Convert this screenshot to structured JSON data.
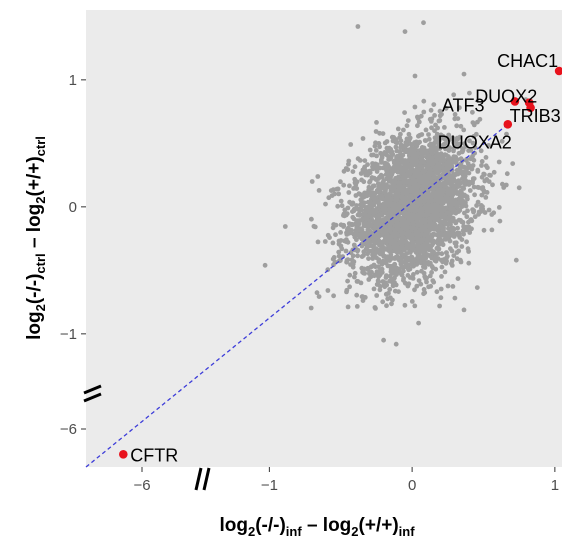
{
  "chart_data": {
    "type": "scatter",
    "title": "",
    "xlabel": {
      "prefix": "log",
      "base": "2",
      "a": "(-/-)",
      "a_sub": "inf",
      "minus": " – ",
      "b": "(+/+)",
      "b_sub": "inf"
    },
    "ylabel": {
      "prefix": "log",
      "base": "2",
      "a": "(-/-)",
      "a_sub": "ctrl",
      "minus": " – ",
      "b": "(+/+)",
      "b_sub": "ctrl"
    },
    "x_axis": {
      "broken": true,
      "segments": [
        [
          -6.3,
          -5.7
        ],
        [
          -1.5,
          1.05
        ]
      ],
      "ticks": [
        -6,
        -1,
        0,
        1
      ],
      "tick_labels": [
        "−6",
        "−1",
        "0",
        "1"
      ]
    },
    "y_axis": {
      "broken": true,
      "segments": [
        [
          -6.3,
          -5.7
        ],
        [
          -1.45,
          1.55
        ]
      ],
      "ticks": [
        -6,
        -1,
        0,
        1
      ],
      "tick_labels": [
        "−6",
        "−1",
        "0",
        "1"
      ]
    },
    "background_points": {
      "color": "#9e9e9e",
      "description_count": 7000,
      "center": [
        0.0,
        0.0
      ],
      "sd_x": 0.22,
      "sd_y": 0.28,
      "correlation": 0.25
    },
    "highlighted": [
      {
        "gene": "CFTR",
        "x": -6.1,
        "y": -6.2,
        "label_side": "right"
      },
      {
        "gene": "CHAC1",
        "x": 1.03,
        "y": 1.07,
        "label_side": "left"
      },
      {
        "gene": "DUOX2",
        "x": 0.82,
        "y": 0.82,
        "label_side": "left"
      },
      {
        "gene": "TRIB3",
        "x": 0.83,
        "y": 0.78,
        "label_side": "left"
      },
      {
        "gene": "ATF3",
        "x": 0.72,
        "y": 0.83,
        "label_side": "left"
      },
      {
        "gene": "DUOXA2",
        "x": 0.67,
        "y": 0.65,
        "label_side": "left"
      }
    ],
    "highlight_color": "#e8121c",
    "reference_line": {
      "style": "dashed",
      "color": "#3d3dd9",
      "from": [
        -6.3,
        -6.3
      ],
      "to": [
        0.67,
        0.65
      ]
    },
    "panel_background": "#ebebeb",
    "grid": false
  }
}
